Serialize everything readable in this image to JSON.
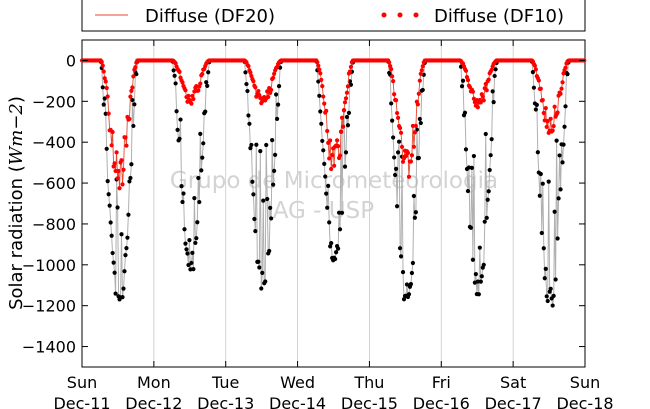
{
  "chart_data": {
    "type": "scatter",
    "watermark_line1": "Grupo de Micrometeorologia",
    "watermark_line2": "IAG - USP",
    "ylabel_prefix": "Solar radiation (",
    "ylabel_unit": "Wm−2",
    "ylabel_suffix": ")",
    "ylim": [
      -1500,
      100
    ],
    "yticks": [
      0,
      -200,
      -400,
      -600,
      -800,
      -1000,
      -1200,
      -1400
    ],
    "xlim_days": [
      0,
      7
    ],
    "xticks": [
      {
        "day": "Sun",
        "date": "Dec-11"
      },
      {
        "day": "Mon",
        "date": "Dec-12"
      },
      {
        "day": "Tue",
        "date": "Dec-13"
      },
      {
        "day": "Wed",
        "date": "Dec-14"
      },
      {
        "day": "Thu",
        "date": "Dec-15"
      },
      {
        "day": "Fri",
        "date": "Dec-16"
      },
      {
        "day": "Sat",
        "date": "Dec-17"
      },
      {
        "day": "Sun",
        "date": "Dec-18"
      }
    ],
    "grid": "vertical",
    "legend_placement": "top, outside plot",
    "series": [
      {
        "name": "Diffuse (DF20)",
        "style": "line",
        "color": "#e34a33"
      },
      {
        "name": "Diffuse (DF10)",
        "style": "markers",
        "color": "#ff0000"
      },
      {
        "name": "",
        "style": "markers+line",
        "color": "#000000",
        "line_color": "#b0b0b0"
      }
    ],
    "daily_profile": [
      {
        "day": "Dec-11",
        "global_peak": -1240,
        "diffuse_peak": -600
      },
      {
        "day": "Dec-12",
        "global_peak": -1050,
        "diffuse_peak": -200
      },
      {
        "day": "Dec-13",
        "global_peak": -1150,
        "diffuse_peak": -220
      },
      {
        "day": "Dec-14",
        "global_peak": -1010,
        "diffuse_peak": -540
      },
      {
        "day": "Dec-15",
        "global_peak": -1210,
        "diffuse_peak": -560
      },
      {
        "day": "Dec-16",
        "global_peak": -1180,
        "diffuse_peak": -220
      },
      {
        "day": "Dec-17",
        "global_peak": -1240,
        "diffuse_peak": -340
      }
    ]
  }
}
